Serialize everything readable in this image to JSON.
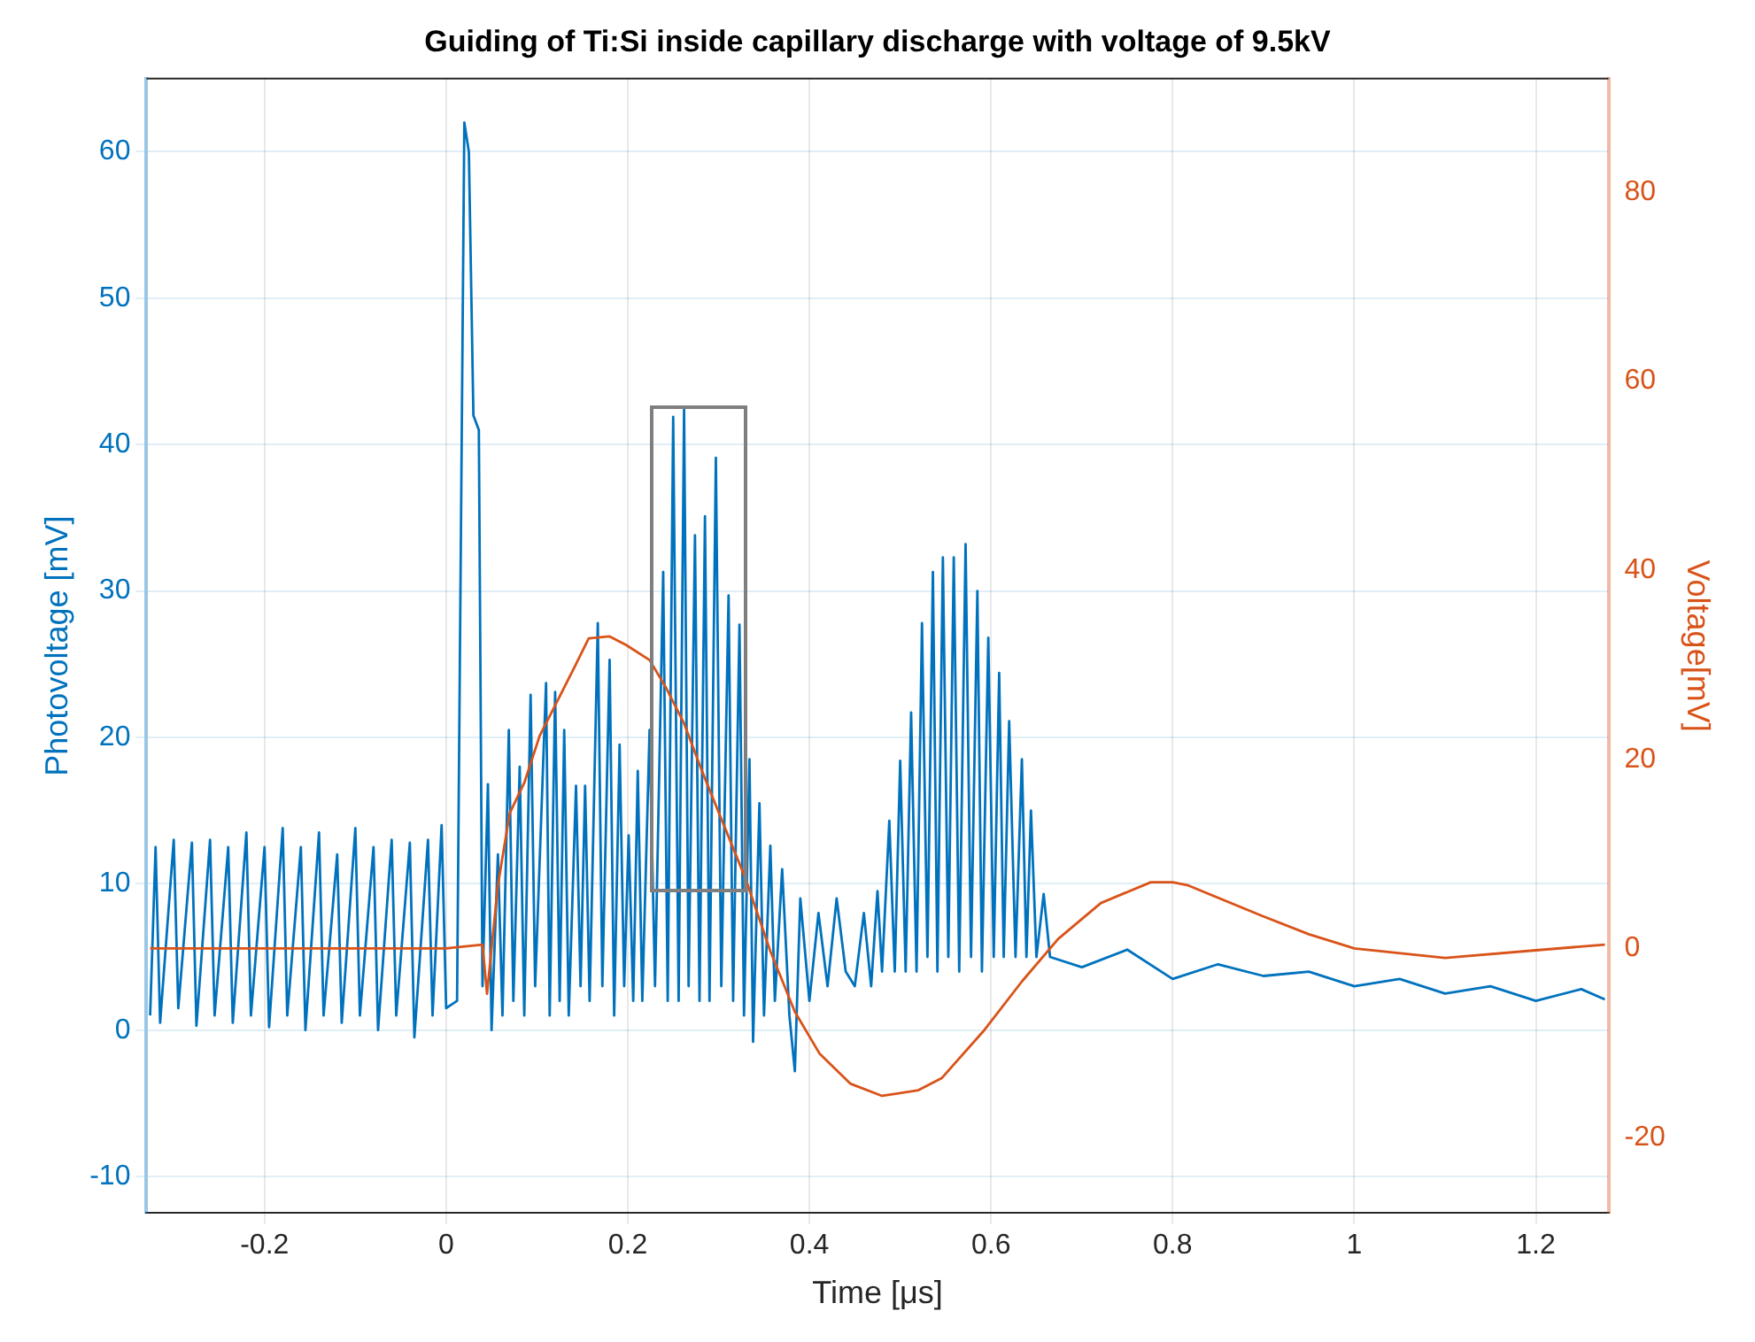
{
  "chart_data": {
    "type": "line",
    "title": "Guiding of Ti:Si inside capillary discharge with voltage of 9.5kV",
    "xlabel": "Time [μs]",
    "ylabel": "Photovoltage [mV]",
    "y2label": "Voltage[mV]",
    "xlim": [
      -0.33,
      1.28
    ],
    "xticks": [
      -0.2,
      0,
      0.2,
      0.4,
      0.6,
      0.8,
      1,
      1.2
    ],
    "ylim": [
      -12.5,
      65
    ],
    "yticks": [
      -10,
      0,
      10,
      20,
      30,
      40,
      50,
      60
    ],
    "y2lim": [
      -28,
      92
    ],
    "y2ticks": [
      -20,
      0,
      20,
      40,
      60,
      80
    ],
    "grid": true,
    "legend": false,
    "marker": "none",
    "line_style": "solid",
    "series": [
      {
        "color": "#0072bd",
        "x": [
          -0.326,
          -0.32,
          -0.315,
          -0.3,
          -0.295,
          -0.28,
          -0.275,
          -0.26,
          -0.255,
          -0.24,
          -0.235,
          -0.22,
          -0.215,
          -0.2,
          -0.195,
          -0.18,
          -0.175,
          -0.16,
          -0.155,
          -0.14,
          -0.135,
          -0.12,
          -0.115,
          -0.1,
          -0.095,
          -0.08,
          -0.075,
          -0.06,
          -0.055,
          -0.04,
          -0.035,
          -0.02,
          -0.015,
          -0.005,
          0,
          0.012,
          0.02,
          0.025,
          0.03,
          0.036,
          0.04,
          0.046,
          0.05,
          0.057,
          0.062,
          0.069,
          0.074,
          0.081,
          0.086,
          0.093,
          0.098,
          0.11,
          0.114,
          0.12,
          0.125,
          0.13,
          0.135,
          0.143,
          0.148,
          0.153,
          0.158,
          0.167,
          0.172,
          0.18,
          0.185,
          0.191,
          0.196,
          0.201,
          0.206,
          0.211,
          0.216,
          0.224,
          0.23,
          0.239,
          0.244,
          0.25,
          0.256,
          0.262,
          0.267,
          0.274,
          0.279,
          0.285,
          0.29,
          0.297,
          0.303,
          0.311,
          0.316,
          0.323,
          0.328,
          0.334,
          0.338,
          0.345,
          0.35,
          0.357,
          0.362,
          0.37,
          0.378,
          0.384,
          0.39,
          0.4,
          0.41,
          0.42,
          0.43,
          0.44,
          0.45,
          0.46,
          0.468,
          0.475,
          0.48,
          0.488,
          0.494,
          0.5,
          0.506,
          0.512,
          0.518,
          0.524,
          0.53,
          0.536,
          0.541,
          0.547,
          0.553,
          0.559,
          0.565,
          0.572,
          0.578,
          0.585,
          0.59,
          0.597,
          0.603,
          0.609,
          0.614,
          0.62,
          0.627,
          0.634,
          0.639,
          0.644,
          0.65,
          0.658,
          0.665,
          0.7,
          0.75,
          0.8,
          0.85,
          0.9,
          0.95,
          1,
          1.05,
          1.1,
          1.15,
          1.2,
          1.25,
          1.276
        ],
        "values": [
          1,
          12.5,
          0.5,
          13,
          1.5,
          12.8,
          0.3,
          13,
          1,
          12.5,
          0.5,
          13.5,
          1,
          12.5,
          0.2,
          13.8,
          1,
          12.5,
          0,
          13.5,
          1,
          12,
          0.5,
          13.8,
          1,
          12.5,
          0,
          13,
          1,
          12.8,
          -0.5,
          13,
          1,
          14,
          1.5,
          2,
          62,
          60,
          42,
          41,
          3,
          16.8,
          0,
          12,
          1,
          20.5,
          2,
          18,
          1,
          22.9,
          3,
          23.7,
          1,
          23.1,
          2,
          20.5,
          1,
          16.7,
          3,
          16.7,
          2,
          27.8,
          3,
          25.3,
          1,
          19.5,
          3,
          13.3,
          2,
          17.7,
          2,
          20.5,
          3,
          31.3,
          2,
          41.9,
          2,
          42.4,
          3,
          33.8,
          2,
          35.1,
          2,
          39.1,
          3,
          29.7,
          2,
          27.7,
          1,
          18.5,
          -0.8,
          15.5,
          1,
          12.6,
          2,
          11,
          1,
          -2.8,
          9,
          2,
          8,
          3,
          9,
          4,
          3,
          8,
          3,
          9.5,
          4,
          14.3,
          4,
          18.4,
          4,
          21.7,
          4,
          27.8,
          5,
          31.3,
          4,
          32.3,
          5,
          32.3,
          4,
          33.2,
          5,
          30,
          4,
          26.8,
          5,
          24.4,
          5,
          21.1,
          5,
          18.5,
          5,
          15,
          5,
          9.3,
          5,
          4.3,
          5.5,
          3.5,
          4.5,
          3.7,
          4,
          3,
          3.5,
          2.5,
          3,
          2,
          2.8,
          2.1
        ]
      },
      {
        "color": "#d95319",
        "axis": "y2",
        "x": [
          -0.326,
          0,
          0.04,
          0.045,
          0.057,
          0.07,
          0.086,
          0.103,
          0.12,
          0.14,
          0.157,
          0.18,
          0.198,
          0.224,
          0.242,
          0.262,
          0.282,
          0.303,
          0.33,
          0.357,
          0.384,
          0.411,
          0.445,
          0.48,
          0.52,
          0.546,
          0.593,
          0.634,
          0.674,
          0.721,
          0.776,
          0.8,
          0.816,
          0.897,
          0.95,
          1,
          1.1,
          1.2,
          1.276
        ],
        "values": [
          0,
          0,
          0.4,
          -4.8,
          6.7,
          14.3,
          17.5,
          22.5,
          25.7,
          29.5,
          32.8,
          33,
          32.1,
          30.5,
          27.6,
          23.8,
          18.7,
          13.7,
          7.3,
          -0.3,
          -6.7,
          -11.1,
          -14.3,
          -15.6,
          -15,
          -13.7,
          -8.6,
          -3.5,
          1,
          4.8,
          7,
          7,
          6.7,
          3.5,
          1.5,
          0,
          -1,
          -0.2,
          0.4
        ]
      }
    ]
  }
}
